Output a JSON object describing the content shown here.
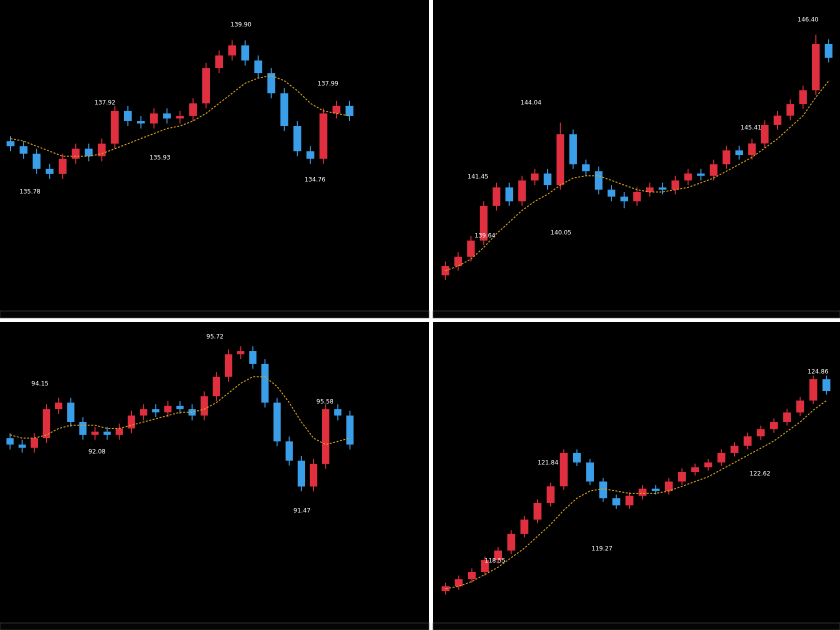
{
  "up_color": "#e0303f",
  "down_color": "#3a9ee8",
  "ma_color": "#d9a21c",
  "panes": [
    {
      "annotations": [
        "135.78",
        "137.92",
        "135.93",
        "139.90",
        "137.99",
        "134.76"
      ],
      "ylim": [
        129,
        141.3
      ],
      "candles": [
        [
          135.7,
          135.9,
          135.3,
          135.5
        ],
        [
          135.5,
          135.7,
          135.0,
          135.2
        ],
        [
          135.2,
          135.4,
          134.4,
          134.6
        ],
        [
          134.6,
          134.8,
          134.2,
          134.4
        ],
        [
          134.4,
          135.2,
          134.2,
          135.0
        ],
        [
          135.0,
          135.6,
          134.8,
          135.4
        ],
        [
          135.4,
          135.6,
          134.9,
          135.1
        ],
        [
          135.1,
          135.8,
          134.9,
          135.6
        ],
        [
          135.6,
          137.1,
          135.4,
          136.9
        ],
        [
          136.9,
          137.1,
          136.3,
          136.5
        ],
        [
          136.5,
          136.7,
          136.2,
          136.4
        ],
        [
          136.4,
          137.0,
          136.2,
          136.8
        ],
        [
          136.8,
          137.0,
          136.4,
          136.6
        ],
        [
          136.6,
          136.9,
          136.4,
          136.7
        ],
        [
          136.7,
          137.4,
          136.5,
          137.2
        ],
        [
          137.2,
          138.8,
          137.0,
          138.6
        ],
        [
          138.6,
          139.3,
          138.4,
          139.1
        ],
        [
          139.1,
          139.7,
          138.9,
          139.5
        ],
        [
          139.5,
          139.7,
          138.7,
          138.9
        ],
        [
          138.9,
          139.1,
          138.2,
          138.4
        ],
        [
          138.4,
          138.6,
          137.4,
          137.6
        ],
        [
          137.6,
          137.8,
          136.1,
          136.3
        ],
        [
          136.3,
          136.5,
          135.1,
          135.3
        ],
        [
          135.3,
          135.5,
          134.8,
          135.0
        ],
        [
          135.0,
          137.0,
          134.8,
          136.8
        ],
        [
          136.8,
          137.3,
          136.6,
          137.1
        ],
        [
          137.1,
          137.3,
          136.5,
          136.7
        ]
      ],
      "ma": [
        135.8,
        135.7,
        135.5,
        135.3,
        135.1,
        135.1,
        135.1,
        135.2,
        135.4,
        135.6,
        135.8,
        136.0,
        136.2,
        136.3,
        136.5,
        136.8,
        137.2,
        137.6,
        138.0,
        138.2,
        138.3,
        138.1,
        137.7,
        137.2,
        136.9,
        136.8,
        136.7
      ]
    },
    {
      "annotations": [
        "146.40",
        "144.04",
        "141.45",
        "139.64",
        "140.05",
        "145.41"
      ],
      "ylim": [
        136.3,
        149.7
      ],
      "candles": [
        [
          137.8,
          138.4,
          137.6,
          138.2
        ],
        [
          138.2,
          138.8,
          138.0,
          138.6
        ],
        [
          138.6,
          139.5,
          138.4,
          139.3
        ],
        [
          139.3,
          141.0,
          139.1,
          140.8
        ],
        [
          140.8,
          141.8,
          140.6,
          141.6
        ],
        [
          141.6,
          141.8,
          140.8,
          141.0
        ],
        [
          141.0,
          142.1,
          140.8,
          141.9
        ],
        [
          141.9,
          142.4,
          141.7,
          142.2
        ],
        [
          142.2,
          142.4,
          141.5,
          141.7
        ],
        [
          141.7,
          144.4,
          141.5,
          143.9
        ],
        [
          143.9,
          144.1,
          142.4,
          142.6
        ],
        [
          142.6,
          142.8,
          142.1,
          142.3
        ],
        [
          142.3,
          142.5,
          141.3,
          141.5
        ],
        [
          141.5,
          141.7,
          141.0,
          141.2
        ],
        [
          141.2,
          141.4,
          140.7,
          141.0
        ],
        [
          141.0,
          141.6,
          140.8,
          141.4
        ],
        [
          141.4,
          141.8,
          141.2,
          141.6
        ],
        [
          141.6,
          141.8,
          141.3,
          141.5
        ],
        [
          141.5,
          142.1,
          141.3,
          141.9
        ],
        [
          141.9,
          142.4,
          141.7,
          142.2
        ],
        [
          142.2,
          142.4,
          141.9,
          142.1
        ],
        [
          142.1,
          142.8,
          141.9,
          142.6
        ],
        [
          142.6,
          143.4,
          142.4,
          143.2
        ],
        [
          143.2,
          143.4,
          142.8,
          143.0
        ],
        [
          143.0,
          143.7,
          142.8,
          143.5
        ],
        [
          143.5,
          144.5,
          143.3,
          144.3
        ],
        [
          144.3,
          144.9,
          144.1,
          144.7
        ],
        [
          144.7,
          145.4,
          144.5,
          145.2
        ],
        [
          145.2,
          146.0,
          145.0,
          145.8
        ],
        [
          145.8,
          148.2,
          145.6,
          147.8
        ],
        [
          147.8,
          148.0,
          147.0,
          147.2
        ]
      ],
      "ma": [
        138.0,
        138.2,
        138.5,
        139.0,
        139.6,
        140.1,
        140.6,
        141.0,
        141.3,
        141.7,
        142.0,
        142.1,
        142.1,
        141.9,
        141.7,
        141.5,
        141.4,
        141.4,
        141.5,
        141.6,
        141.8,
        142.0,
        142.3,
        142.6,
        142.9,
        143.3,
        143.7,
        144.2,
        144.7,
        145.5,
        146.2
      ]
    },
    {
      "annotations": [
        "94.15",
        "92.08",
        "95.72",
        "95.58",
        "91.47"
      ],
      "ylim": [
        88.6,
        97.9
      ],
      "candles": [
        [
          94.3,
          94.45,
          93.95,
          94.1
        ],
        [
          94.1,
          94.25,
          93.85,
          94.0
        ],
        [
          94.0,
          94.45,
          93.85,
          94.3
        ],
        [
          94.3,
          95.35,
          94.15,
          95.2
        ],
        [
          95.2,
          95.55,
          95.05,
          95.4
        ],
        [
          95.4,
          95.55,
          94.65,
          94.8
        ],
        [
          94.8,
          94.95,
          94.25,
          94.4
        ],
        [
          94.4,
          94.65,
          94.25,
          94.5
        ],
        [
          94.5,
          94.65,
          94.25,
          94.4
        ],
        [
          94.4,
          94.75,
          94.25,
          94.6
        ],
        [
          94.6,
          95.15,
          94.45,
          95.0
        ],
        [
          95.0,
          95.35,
          94.85,
          95.2
        ],
        [
          95.2,
          95.35,
          94.95,
          95.1
        ],
        [
          95.1,
          95.45,
          94.95,
          95.3
        ],
        [
          95.3,
          95.45,
          95.05,
          95.2
        ],
        [
          95.2,
          95.35,
          94.85,
          95.0
        ],
        [
          95.0,
          95.75,
          94.85,
          95.6
        ],
        [
          95.6,
          96.35,
          95.45,
          96.2
        ],
        [
          96.2,
          97.05,
          96.05,
          96.9
        ],
        [
          96.9,
          97.15,
          96.75,
          97.0
        ],
        [
          97.0,
          97.15,
          96.45,
          96.6
        ],
        [
          96.6,
          96.75,
          95.25,
          95.4
        ],
        [
          95.4,
          95.55,
          94.05,
          94.2
        ],
        [
          94.2,
          94.35,
          93.45,
          93.6
        ],
        [
          93.6,
          93.75,
          92.65,
          92.8
        ],
        [
          92.8,
          93.65,
          92.65,
          93.5
        ],
        [
          93.5,
          95.35,
          93.35,
          95.2
        ],
        [
          95.2,
          95.35,
          94.85,
          95.0
        ],
        [
          95.0,
          95.15,
          93.95,
          94.1
        ]
      ],
      "ma": [
        94.4,
        94.3,
        94.3,
        94.4,
        94.6,
        94.7,
        94.7,
        94.7,
        94.6,
        94.6,
        94.7,
        94.8,
        94.9,
        95.0,
        95.1,
        95.1,
        95.2,
        95.4,
        95.7,
        96.0,
        96.2,
        96.2,
        95.9,
        95.4,
        94.8,
        94.3,
        94.1,
        94.2,
        94.3
      ]
    },
    {
      "annotations": [
        "124.86",
        "121.84",
        "119.27",
        "118.55",
        "122.62"
      ],
      "ylim": [
        114.5,
        127.1
      ],
      "candles": [
        [
          115.8,
          116.15,
          115.65,
          116.0
        ],
        [
          116.0,
          116.45,
          115.85,
          116.3
        ],
        [
          116.3,
          116.75,
          116.15,
          116.6
        ],
        [
          116.6,
          117.25,
          116.45,
          117.1
        ],
        [
          117.1,
          117.65,
          116.95,
          117.5
        ],
        [
          117.5,
          118.35,
          117.35,
          118.2
        ],
        [
          118.2,
          118.95,
          118.05,
          118.8
        ],
        [
          118.8,
          119.65,
          118.65,
          119.5
        ],
        [
          119.5,
          120.35,
          119.35,
          120.2
        ],
        [
          120.2,
          121.75,
          120.05,
          121.6
        ],
        [
          121.6,
          121.75,
          121.05,
          121.2
        ],
        [
          121.2,
          121.35,
          120.25,
          120.4
        ],
        [
          120.4,
          120.55,
          119.55,
          119.7
        ],
        [
          119.7,
          119.85,
          119.25,
          119.4
        ],
        [
          119.4,
          119.95,
          119.25,
          119.8
        ],
        [
          119.8,
          120.25,
          119.65,
          120.1
        ],
        [
          120.1,
          120.25,
          119.85,
          120.0
        ],
        [
          120.0,
          120.55,
          119.85,
          120.4
        ],
        [
          120.4,
          120.95,
          120.25,
          120.8
        ],
        [
          120.8,
          121.15,
          120.65,
          121.0
        ],
        [
          121.0,
          121.35,
          120.85,
          121.2
        ],
        [
          121.2,
          121.75,
          121.05,
          121.6
        ],
        [
          121.6,
          122.05,
          121.45,
          121.9
        ],
        [
          121.9,
          122.45,
          121.75,
          122.3
        ],
        [
          122.3,
          122.75,
          122.15,
          122.6
        ],
        [
          122.6,
          123.05,
          122.45,
          122.9
        ],
        [
          122.9,
          123.45,
          122.75,
          123.3
        ],
        [
          123.3,
          123.95,
          123.15,
          123.8
        ],
        [
          123.8,
          124.85,
          123.65,
          124.7
        ],
        [
          124.7,
          124.85,
          124.05,
          124.2
        ]
      ],
      "ma": [
        115.9,
        116.0,
        116.2,
        116.5,
        116.8,
        117.2,
        117.6,
        118.1,
        118.6,
        119.2,
        119.7,
        120.0,
        120.1,
        120.0,
        119.9,
        119.9,
        119.9,
        120.0,
        120.2,
        120.4,
        120.6,
        120.9,
        121.2,
        121.5,
        121.8,
        122.1,
        122.5,
        122.9,
        123.4,
        123.8
      ]
    }
  ]
}
